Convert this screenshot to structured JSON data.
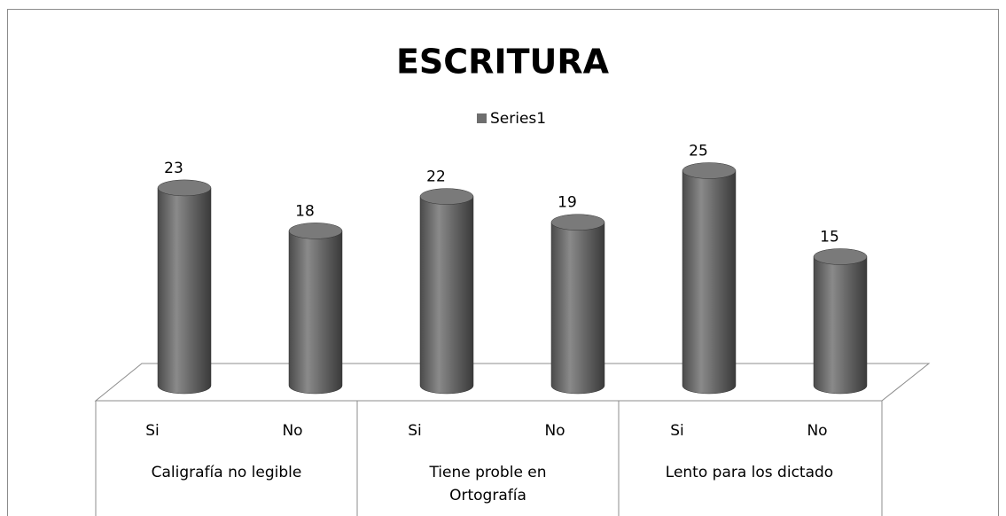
{
  "chart_data": {
    "type": "bar3d",
    "title": "ESCRITURA",
    "categories": [
      "Si",
      "No",
      "Si",
      "No",
      "Si",
      "No"
    ],
    "groups": [
      "Caligrafía no legible",
      "Tiene proble en Ortografía",
      "Lento para los dictado"
    ],
    "series": [
      {
        "name": "Series1",
        "color": "#6e6e6e",
        "values": [
          23,
          18,
          22,
          19,
          25,
          15
        ]
      }
    ],
    "legend": "top"
  }
}
